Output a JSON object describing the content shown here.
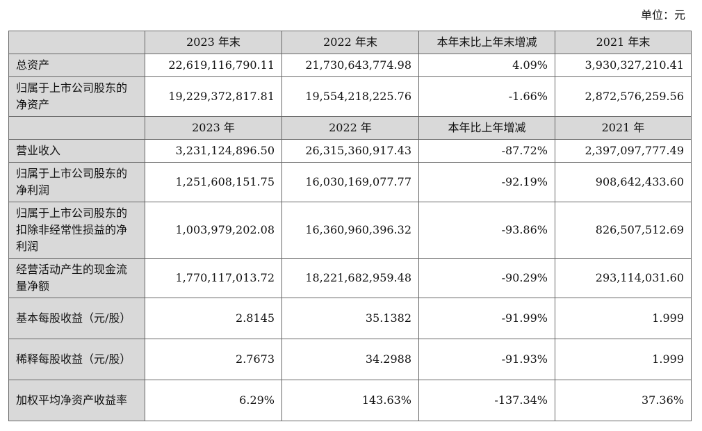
{
  "unit_label": "单位：元",
  "header1": [
    "",
    "2023 年末",
    "2022 年末",
    "本年末比上年末增减",
    "2021 年末"
  ],
  "section1": [
    {
      "label": "总资产",
      "values": [
        "22,619,116,790.11",
        "21,730,643,774.98",
        "4.09%",
        "3,930,327,210.41"
      ]
    },
    {
      "label": "归属于上市公司股东的净资产",
      "values": [
        "19,229,372,817.81",
        "19,554,218,225.76",
        "-1.66%",
        "2,872,576,259.56"
      ]
    }
  ],
  "header2": [
    "",
    "2023 年",
    "2022 年",
    "本年比上年增减",
    "2021 年"
  ],
  "section2": [
    {
      "label": "营业收入",
      "values": [
        "3,231,124,896.50",
        "26,315,360,917.43",
        "-87.72%",
        "2,397,097,777.49"
      ]
    },
    {
      "label": "归属于上市公司股东的净利润",
      "values": [
        "1,251,608,151.75",
        "16,030,169,077.77",
        "-92.19%",
        "908,642,433.60"
      ]
    },
    {
      "label": "归属于上市公司股东的扣除非经常性损益的净利润",
      "values": [
        "1,003,979,202.08",
        "16,360,960,396.32",
        "-93.86%",
        "826,507,512.69"
      ]
    },
    {
      "label": "经营活动产生的现金流量净额",
      "values": [
        "1,770,117,013.72",
        "18,221,682,959.48",
        "-90.29%",
        "293,114,031.60"
      ]
    },
    {
      "label": "基本每股收益（元/股）",
      "values": [
        "2.8145",
        "35.1382",
        "-91.99%",
        "1.999"
      ]
    },
    {
      "label": "稀释每股收益（元/股）",
      "values": [
        "2.7673",
        "34.2988",
        "-91.93%",
        "1.999"
      ]
    },
    {
      "label": "加权平均净资产收益率",
      "values": [
        "6.29%",
        "143.63%",
        "-137.34%",
        "37.36%"
      ]
    }
  ]
}
